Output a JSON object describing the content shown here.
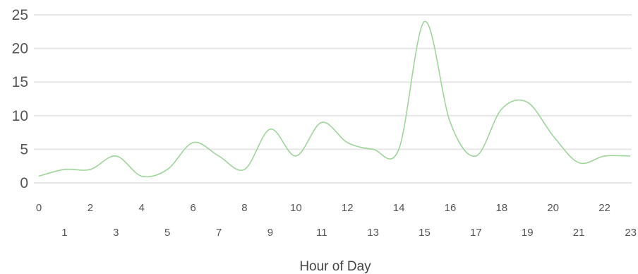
{
  "chart_data": {
    "type": "line",
    "title": "",
    "xlabel": "Hour of Day",
    "ylabel": "",
    "x": [
      0,
      1,
      2,
      3,
      4,
      5,
      6,
      7,
      8,
      9,
      10,
      11,
      12,
      13,
      14,
      15,
      16,
      17,
      18,
      19,
      20,
      21,
      22,
      23
    ],
    "series": [
      {
        "values": [
          1,
          2,
          2,
          4,
          1,
          2,
          6,
          4,
          2,
          8,
          4,
          9,
          6,
          5,
          5,
          24,
          9,
          4,
          11,
          12,
          7,
          3,
          4,
          4
        ]
      }
    ],
    "ylim": [
      0,
      25
    ],
    "yticks": [
      0,
      5,
      10,
      15,
      20,
      25
    ],
    "xlim": [
      0,
      23
    ],
    "xticks_top": [
      0,
      2,
      4,
      6,
      8,
      10,
      12,
      14,
      16,
      18,
      20,
      22
    ],
    "xticks_bottom": [
      1,
      3,
      5,
      7,
      9,
      11,
      13,
      15,
      17,
      19,
      21,
      23
    ],
    "grid": true,
    "legend": "none",
    "line_color": "#9ed69a"
  }
}
